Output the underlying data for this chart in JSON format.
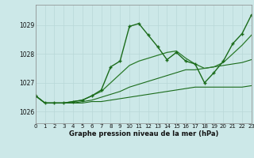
{
  "title": "Graphe pression niveau de la mer (hPa)",
  "bg_color": "#cce8e8",
  "grid_color": "#b8d8d8",
  "xlim": [
    0,
    23
  ],
  "ylim": [
    1025.6,
    1029.7
  ],
  "yticks": [
    1026,
    1027,
    1028,
    1029
  ],
  "xticks": [
    0,
    1,
    2,
    3,
    4,
    5,
    6,
    7,
    8,
    9,
    10,
    11,
    12,
    13,
    14,
    15,
    16,
    17,
    18,
    19,
    20,
    21,
    22,
    23
  ],
  "series": [
    {
      "x": [
        0,
        1,
        2,
        3,
        4,
        5,
        6,
        7,
        8,
        9,
        10,
        11,
        12,
        13,
        14,
        15,
        16,
        17,
        18,
        19,
        20,
        21,
        22,
        23
      ],
      "y": [
        1026.55,
        1026.3,
        1026.3,
        1026.3,
        1026.3,
        1026.3,
        1026.35,
        1026.35,
        1026.4,
        1026.45,
        1026.5,
        1026.55,
        1026.6,
        1026.65,
        1026.7,
        1026.75,
        1026.8,
        1026.85,
        1026.85,
        1026.85,
        1026.85,
        1026.85,
        1026.85,
        1026.9
      ],
      "color": "#1a6b1a",
      "linewidth": 0.8,
      "linestyle": "-",
      "marker": null
    },
    {
      "x": [
        0,
        1,
        2,
        3,
        4,
        5,
        6,
        7,
        8,
        9,
        10,
        11,
        12,
        13,
        14,
        15,
        16,
        17,
        18,
        19,
        20,
        21,
        22,
        23
      ],
      "y": [
        1026.55,
        1026.3,
        1026.3,
        1026.3,
        1026.3,
        1026.35,
        1026.4,
        1026.5,
        1026.6,
        1026.7,
        1026.85,
        1026.95,
        1027.05,
        1027.15,
        1027.25,
        1027.35,
        1027.45,
        1027.45,
        1027.5,
        1027.55,
        1027.6,
        1027.65,
        1027.7,
        1027.8
      ],
      "color": "#1a6b1a",
      "linewidth": 0.8,
      "linestyle": "-",
      "marker": null
    },
    {
      "x": [
        0,
        1,
        2,
        3,
        4,
        5,
        6,
        7,
        8,
        9,
        10,
        11,
        12,
        13,
        14,
        15,
        16,
        17,
        18,
        19,
        20,
        21,
        22,
        23
      ],
      "y": [
        1026.55,
        1026.3,
        1026.3,
        1026.3,
        1026.35,
        1026.4,
        1026.55,
        1026.7,
        1027.0,
        1027.3,
        1027.6,
        1027.75,
        1027.85,
        1027.95,
        1028.05,
        1028.1,
        1027.85,
        1027.65,
        1027.5,
        1027.55,
        1027.7,
        1028.0,
        1028.3,
        1028.65
      ],
      "color": "#2a7a2a",
      "linewidth": 0.9,
      "linestyle": "-",
      "marker": null
    },
    {
      "x": [
        0,
        1,
        2,
        3,
        4,
        5,
        6,
        7,
        8,
        9,
        10,
        11,
        12,
        13,
        14,
        15,
        16,
        17,
        18,
        19,
        20,
        21,
        22,
        23
      ],
      "y": [
        1026.55,
        1026.3,
        1026.3,
        1026.3,
        1026.35,
        1026.4,
        1026.55,
        1026.75,
        1027.55,
        1027.75,
        1028.95,
        1029.05,
        1028.65,
        1028.25,
        1027.8,
        1028.05,
        1027.75,
        1027.65,
        1027.0,
        1027.35,
        1027.75,
        1028.35,
        1028.7,
        1029.35
      ],
      "color": "#1a6b1a",
      "linewidth": 1.0,
      "linestyle": "-",
      "marker": "+",
      "markersize": 3.5,
      "markeredgewidth": 1.0
    }
  ]
}
